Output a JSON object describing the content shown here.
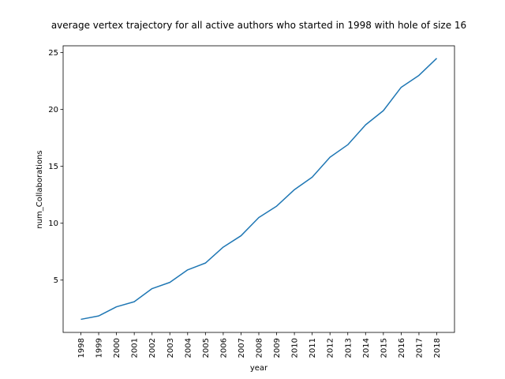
{
  "chart_data": {
    "type": "line",
    "title": "average vertex trajectory for all active authors who started in 1998 with hole of size 16",
    "xlabel": "year",
    "ylabel": "num_Collaborations",
    "x": [
      "1998",
      "1999",
      "2000",
      "2001",
      "2002",
      "2003",
      "2004",
      "2005",
      "2006",
      "2007",
      "2008",
      "2009",
      "2010",
      "2011",
      "2012",
      "2013",
      "2014",
      "2015",
      "2016",
      "2017",
      "2018"
    ],
    "series": [
      {
        "values": [
          1.55,
          1.85,
          2.65,
          3.1,
          4.25,
          4.8,
          5.9,
          6.5,
          7.9,
          8.9,
          10.5,
          11.5,
          12.95,
          14.05,
          15.8,
          16.9,
          18.65,
          19.9,
          21.95,
          23.0,
          24.5
        ],
        "color": "#1f77b4"
      }
    ],
    "yticks": [
      5,
      10,
      15,
      20,
      25
    ],
    "ylim": [
      0.4,
      25.6
    ],
    "grid": false
  }
}
